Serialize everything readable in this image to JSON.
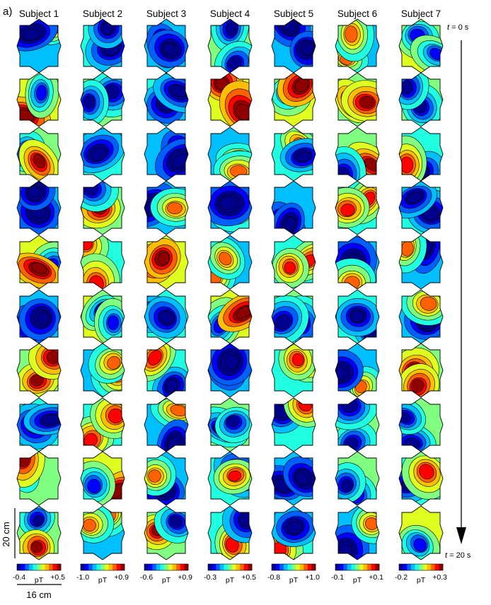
{
  "panel_label": "a)",
  "subjects": [
    {
      "name": "Subject 1",
      "scale_min": "-0.4",
      "scale_unit": "pT",
      "scale_max": "+0.5"
    },
    {
      "name": "Subject 2",
      "scale_min": "-1.0",
      "scale_unit": "pT",
      "scale_max": "+0.9"
    },
    {
      "name": "Subject 3",
      "scale_min": "-0.6",
      "scale_unit": "pT",
      "scale_max": "+0.9"
    },
    {
      "name": "Subject 4",
      "scale_min": "-0.3",
      "scale_unit": "pT",
      "scale_max": "+0.5"
    },
    {
      "name": "Subject 5",
      "scale_min": "-0.8",
      "scale_unit": "pT",
      "scale_max": "+1.0"
    },
    {
      "name": "Subject 6",
      "scale_min": "-0.1",
      "scale_unit": "pT",
      "scale_max": "+0.1"
    },
    {
      "name": "Subject 7",
      "scale_min": "-0.2",
      "scale_unit": "pT",
      "scale_max": "+0.3"
    }
  ],
  "time_axis": {
    "t_symbol": "t",
    "start_label": " = 0 s",
    "end_label": " = 20 s"
  },
  "scale_bars": {
    "vertical_label": "20 cm",
    "horizontal_label": "16 cm"
  },
  "colormap": [
    "#00008f",
    "#0000ff",
    "#0060ff",
    "#00bfff",
    "#20ffdf",
    "#80ff80",
    "#dfff20",
    "#ffbf00",
    "#ff6000",
    "#ff0000",
    "#8f0000"
  ],
  "maps_per_subject": 10
}
